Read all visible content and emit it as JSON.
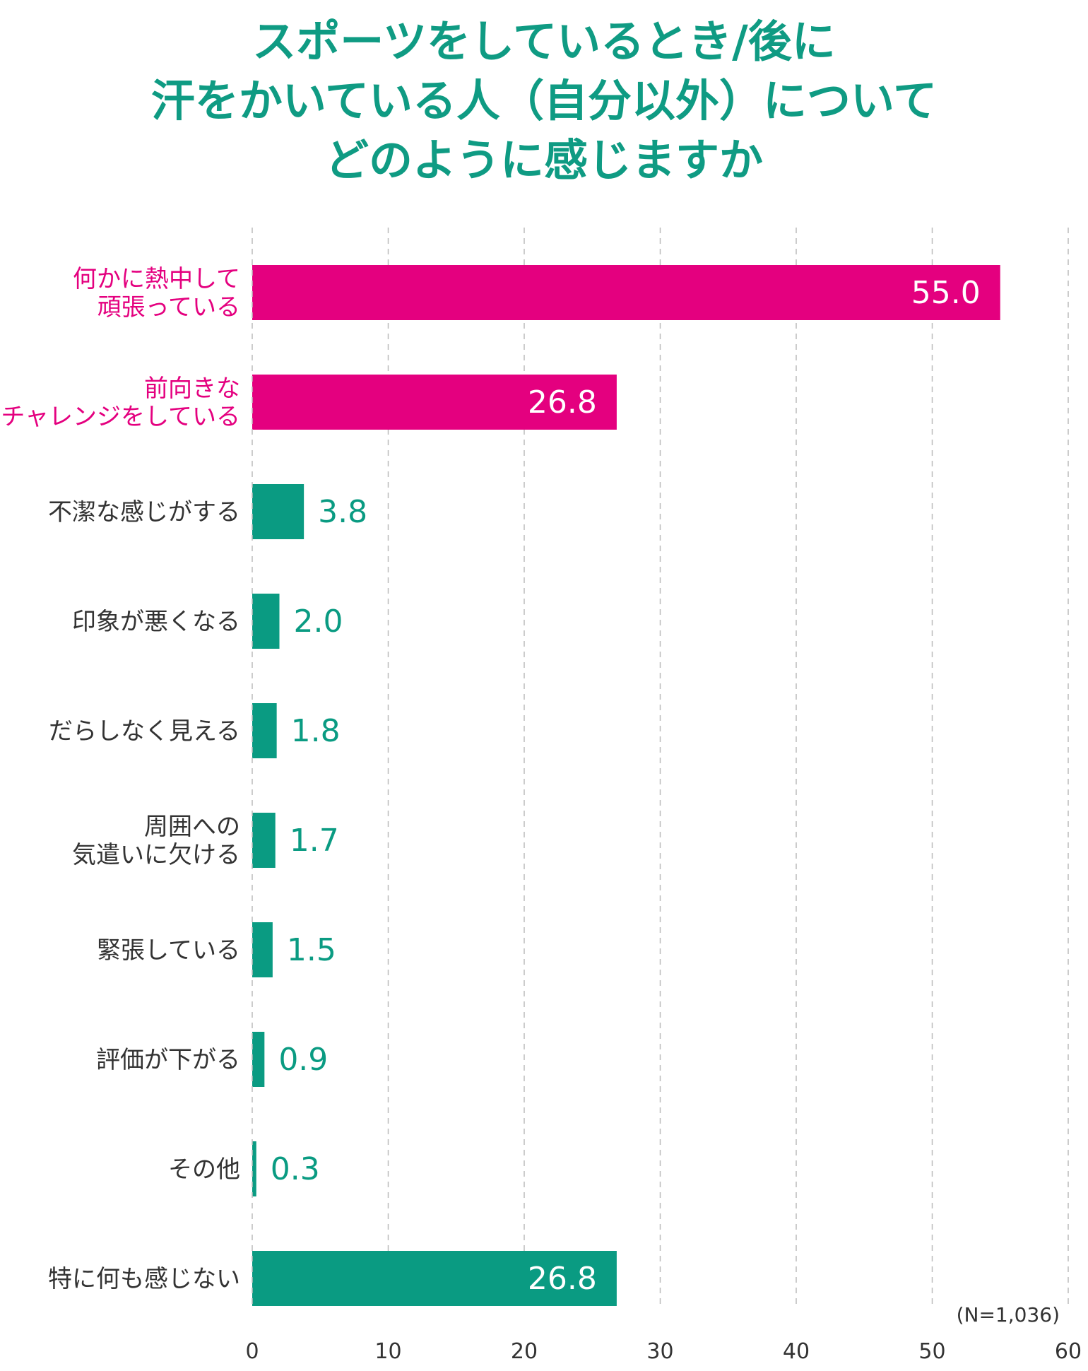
{
  "title_lines": [
    "スポーツをしているとき/後に",
    "汗をかいている人（自分以外）について",
    "どのように感じますか"
  ],
  "colors": {
    "title": "#0f9b83",
    "teal": "#0a9b82",
    "magenta": "#e4007f",
    "category_text": "#333333",
    "grid": "#bbbbbb"
  },
  "chart_data": {
    "type": "bar",
    "orientation": "horizontal",
    "categories": [
      "何かに熱中して\n頑張っている",
      "前向きな\nチャレンジをしている",
      "不潔な感じがする",
      "印象が悪くなる",
      "だらしなく見える",
      "周囲への\n気遣いに欠ける",
      "緊張している",
      "評価が下がる",
      "その他",
      "特に何も感じない"
    ],
    "values": [
      55.0,
      26.8,
      3.8,
      2.0,
      1.8,
      1.7,
      1.5,
      0.9,
      0.3,
      26.8
    ],
    "value_labels": [
      "55.0",
      "26.8",
      "3.8",
      "2.0",
      "1.8",
      "1.7",
      "1.5",
      "0.9",
      "0.3",
      "26.8"
    ],
    "highlight": [
      true,
      true,
      false,
      false,
      false,
      false,
      false,
      false,
      false,
      false
    ],
    "xlim": [
      0,
      60
    ],
    "xticks": [
      "0",
      "10",
      "20",
      "30",
      "40",
      "50",
      "60"
    ],
    "xunit": "(%)",
    "grid": true,
    "note": "(N=1,036)"
  }
}
